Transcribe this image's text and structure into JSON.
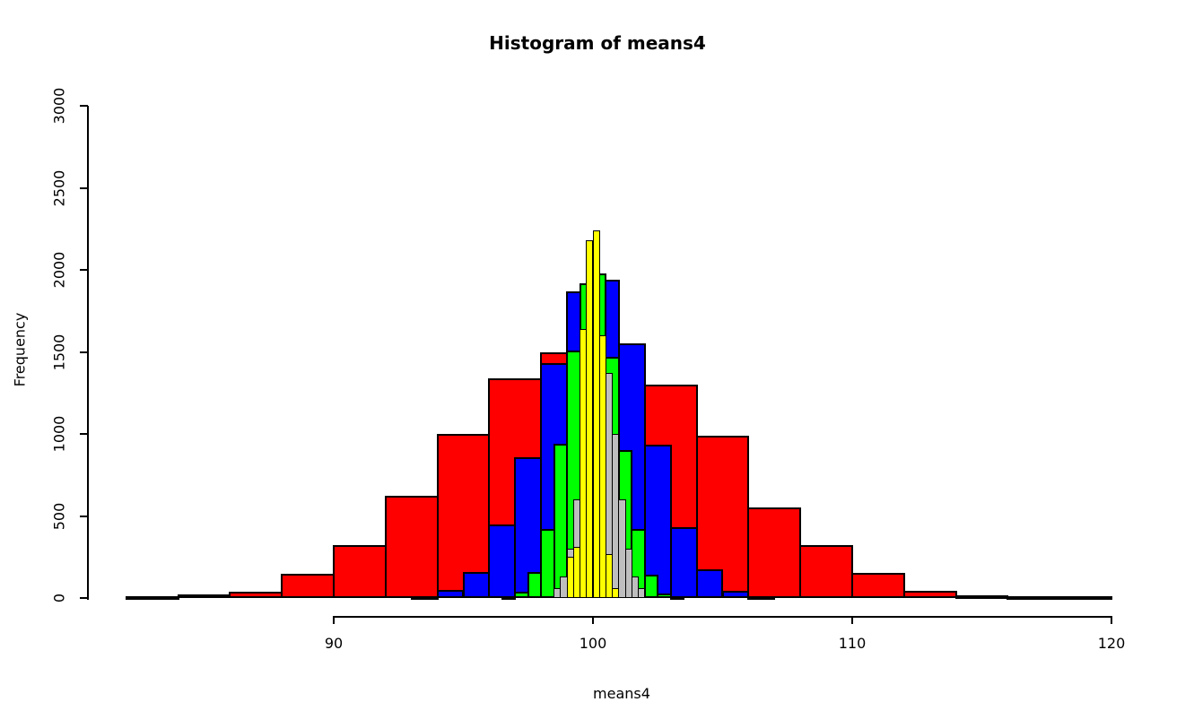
{
  "chart": {
    "title": "Histogram of means4",
    "xlabel": "means4",
    "ylabel": "Frequency",
    "x_ticks": [
      90,
      100,
      110,
      120
    ],
    "y_ticks": [
      0,
      500,
      1000,
      1500,
      2000,
      2500,
      3000
    ],
    "background_color": "#FFFFFF",
    "bar_border_color": "#000000"
  },
  "chart_data": {
    "type": "bar",
    "subtype": "overlaid-histograms",
    "title": "Histogram of means4",
    "xlabel": "means4",
    "ylabel": "Frequency",
    "xlim": [
      82,
      120
    ],
    "ylim": [
      0,
      3000
    ],
    "grid": false,
    "legend_position": "none",
    "series": [
      {
        "name": "red-histogram",
        "color": "#FF0000",
        "bin_start": 82,
        "bin_width": 2,
        "counts": [
          3,
          20,
          40,
          145,
          325,
          625,
          1000,
          1340,
          1500,
          1450,
          1300,
          990,
          550,
          320,
          155,
          42,
          15,
          4,
          1
        ]
      },
      {
        "name": "blue-histogram",
        "color": "#0000FF",
        "bin_start": 93,
        "bin_width": 1,
        "counts": [
          8,
          50,
          160,
          450,
          860,
          1430,
          1870,
          1940,
          1550,
          935,
          430,
          175,
          45,
          10
        ]
      },
      {
        "name": "green-histogram",
        "color": "#00FF00",
        "bin_start": 96.5,
        "bin_width": 0.5,
        "counts": [
          4,
          40,
          160,
          420,
          940,
          1510,
          1920,
          1980,
          1470,
          900,
          420,
          140,
          27,
          4
        ]
      },
      {
        "name": "gray-histogram",
        "color": "#BEBEBE",
        "bin_start": 98.5,
        "bin_width": 0.25,
        "counts": [
          60,
          130,
          300,
          600,
          1000,
          1370,
          1590,
          1590,
          1370,
          1000,
          600,
          300,
          130,
          60
        ]
      },
      {
        "name": "yellow-histogram",
        "color": "#FFFF00",
        "bin_start": 99,
        "bin_width": 0.25,
        "counts": [
          250,
          310,
          1640,
          2180,
          2240,
          1600,
          270,
          60
        ]
      }
    ]
  }
}
